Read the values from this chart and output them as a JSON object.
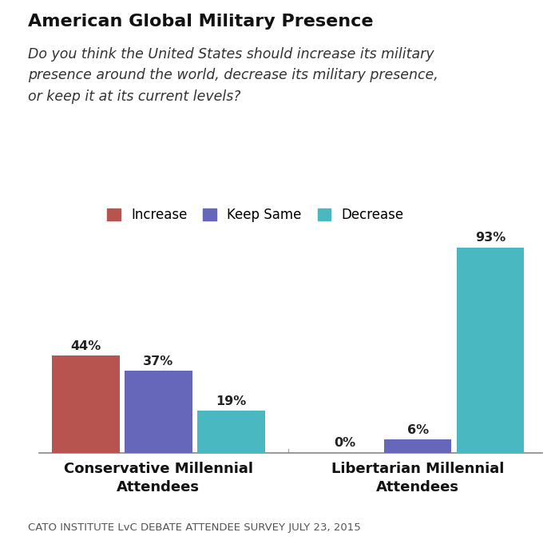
{
  "title": "American Global Military Presence",
  "subtitle": "Do you think the United States should increase its military\npresence around the world, decrease its military presence,\nor keep it at its current levels?",
  "groups": [
    "Conservative Millennial\nAttendees",
    "Libertarian Millennial\nAttendees"
  ],
  "categories": [
    "Increase",
    "Keep Same",
    "Decrease"
  ],
  "values": [
    [
      44,
      37,
      19
    ],
    [
      0,
      6,
      93
    ]
  ],
  "colors": [
    "#b85450",
    "#6666bb",
    "#4ab8c1"
  ],
  "bar_width": 0.13,
  "ylim": [
    0,
    105
  ],
  "source": "CATO INSTITUTE LvC DEBATE ATTENDEE SURVEY JULY 23, 2015",
  "background_color": "#ffffff",
  "label_fontsize": 11.5,
  "title_fontsize": 16,
  "subtitle_fontsize": 12.5,
  "legend_fontsize": 12,
  "source_fontsize": 9.5,
  "xticklabel_fontsize": 13
}
